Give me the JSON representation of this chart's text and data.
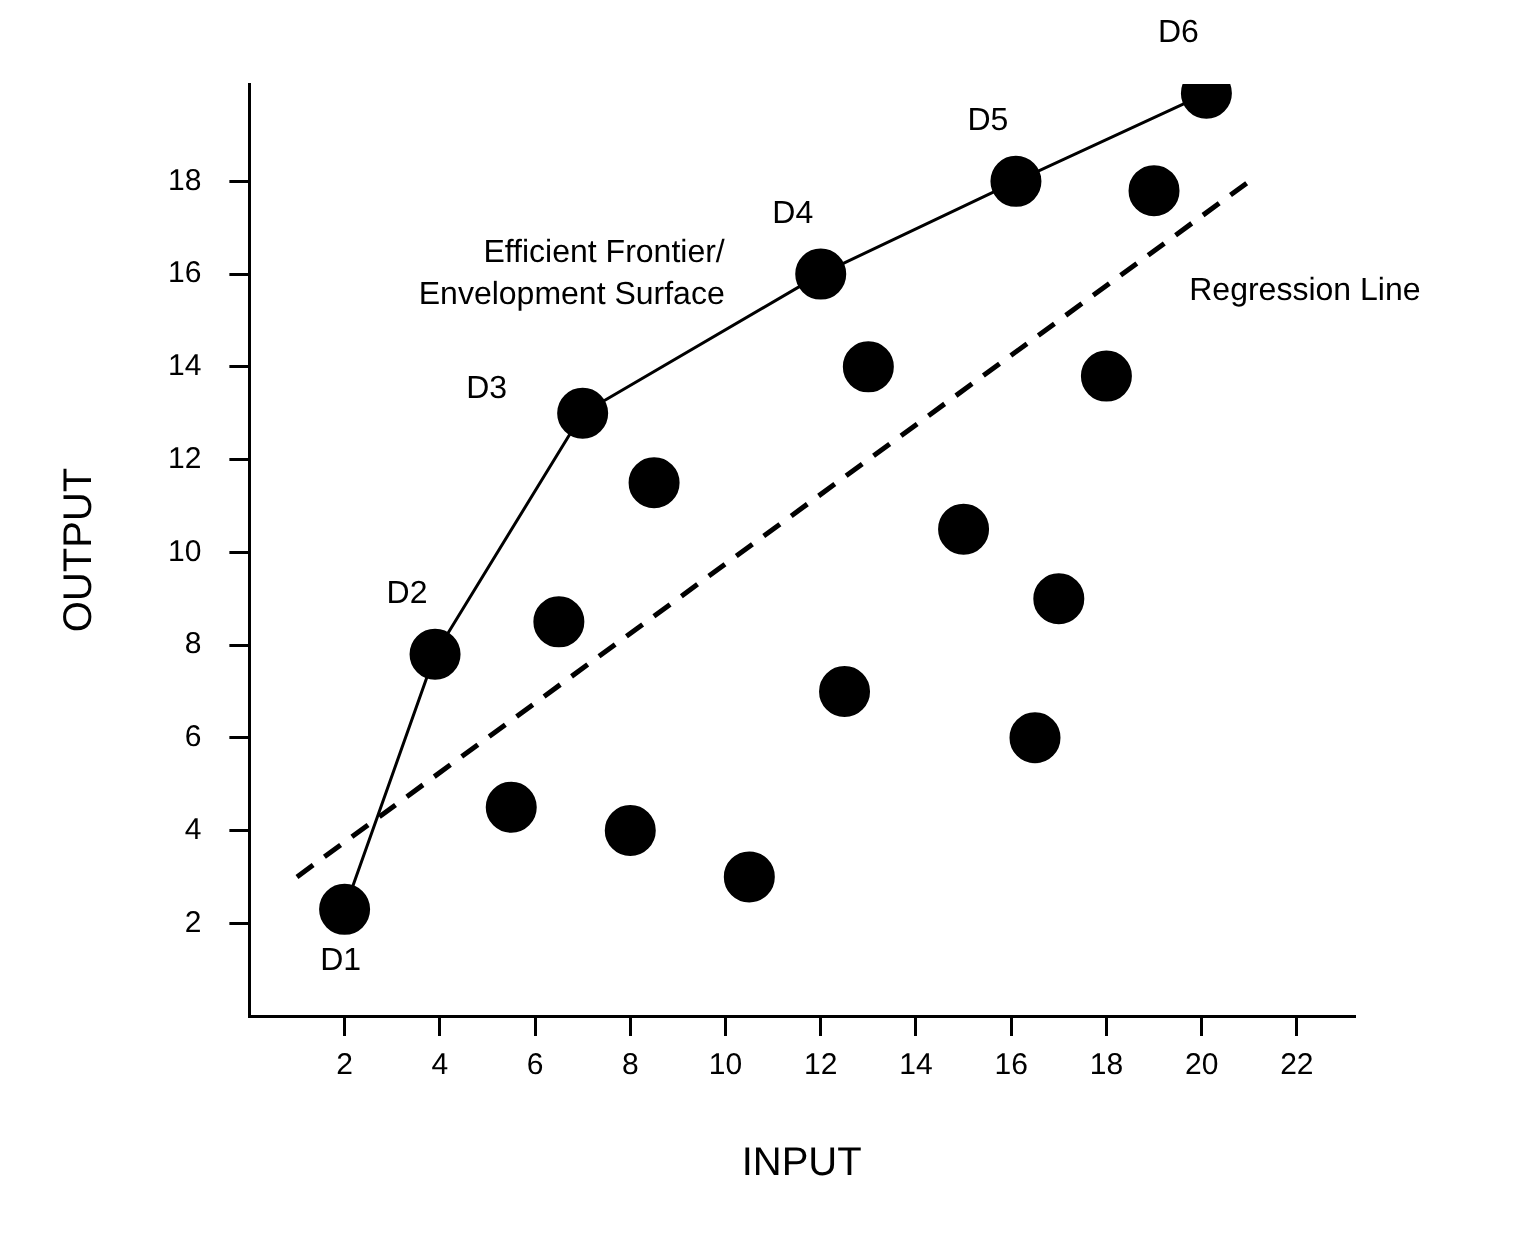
{
  "chart_data": {
    "type": "scatter",
    "xlabel": "INPUT",
    "ylabel": "OUTPUT",
    "xlim": [
      0,
      23.2
    ],
    "ylim": [
      0,
      20.1
    ],
    "xticks": [
      2,
      4,
      6,
      8,
      10,
      12,
      14,
      16,
      18,
      20,
      22
    ],
    "yticks": [
      2,
      4,
      6,
      8,
      10,
      12,
      14,
      16,
      18
    ],
    "grid": false,
    "legend": false,
    "marker": "circle",
    "series": [
      {
        "type": "line",
        "name": "Efficient Frontier/ Envelopment Surface",
        "color": "#000000",
        "x": [
          2,
          3.9,
          7,
          12,
          16.1,
          20.1
        ],
        "values": [
          2.3,
          7.8,
          13,
          16,
          18,
          19.9
        ],
        "marker": "circle",
        "line_style": "solid"
      },
      {
        "type": "line",
        "name": "Regression Line",
        "color": "#000000",
        "x": [
          1,
          21
        ],
        "values": [
          3,
          18
        ],
        "marker": "none",
        "line_style": "dashed"
      },
      {
        "color": "#000000",
        "x": [
          5.5,
          6.5,
          8,
          8.5,
          10.5,
          12.5,
          13,
          15,
          16.5,
          17,
          18,
          19
        ],
        "values": [
          4.5,
          8.5,
          4,
          11.5,
          3,
          7,
          14,
          10.5,
          6,
          9,
          13.8,
          17.8
        ]
      }
    ],
    "annotations": [
      {
        "text": "D1",
        "x": 2,
        "y": 2.3
      },
      {
        "text": "D2",
        "x": 3.9,
        "y": 7.8
      },
      {
        "text": "D3",
        "x": 7,
        "y": 13
      },
      {
        "text": "D4",
        "x": 12,
        "y": 16
      },
      {
        "text": "D5",
        "x": 16.1,
        "y": 18
      },
      {
        "text": "D6",
        "x": 20.1,
        "y": 19.9
      }
    ]
  }
}
